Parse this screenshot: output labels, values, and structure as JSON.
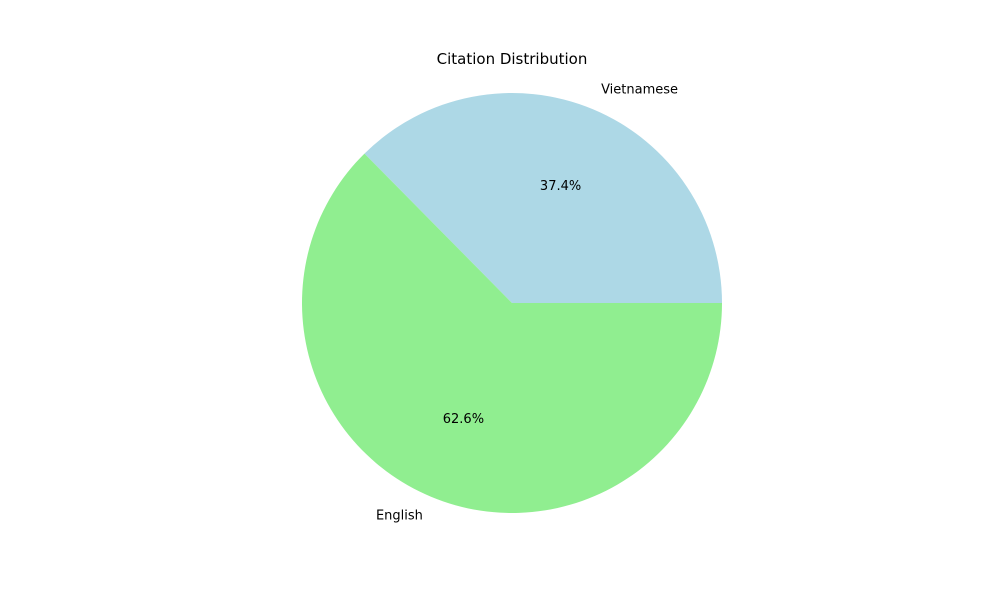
{
  "chart_data": {
    "type": "pie",
    "title": "Citation Distribution",
    "slices": [
      {
        "label": "Vietnamese",
        "value": 37.4,
        "display": "37.4%",
        "color": "#add8e6"
      },
      {
        "label": "English",
        "value": 62.6,
        "display": "62.6%",
        "color": "#90ee90"
      }
    ],
    "start_angle_deg": 0,
    "direction": "counterclockwise",
    "legend": "none"
  }
}
